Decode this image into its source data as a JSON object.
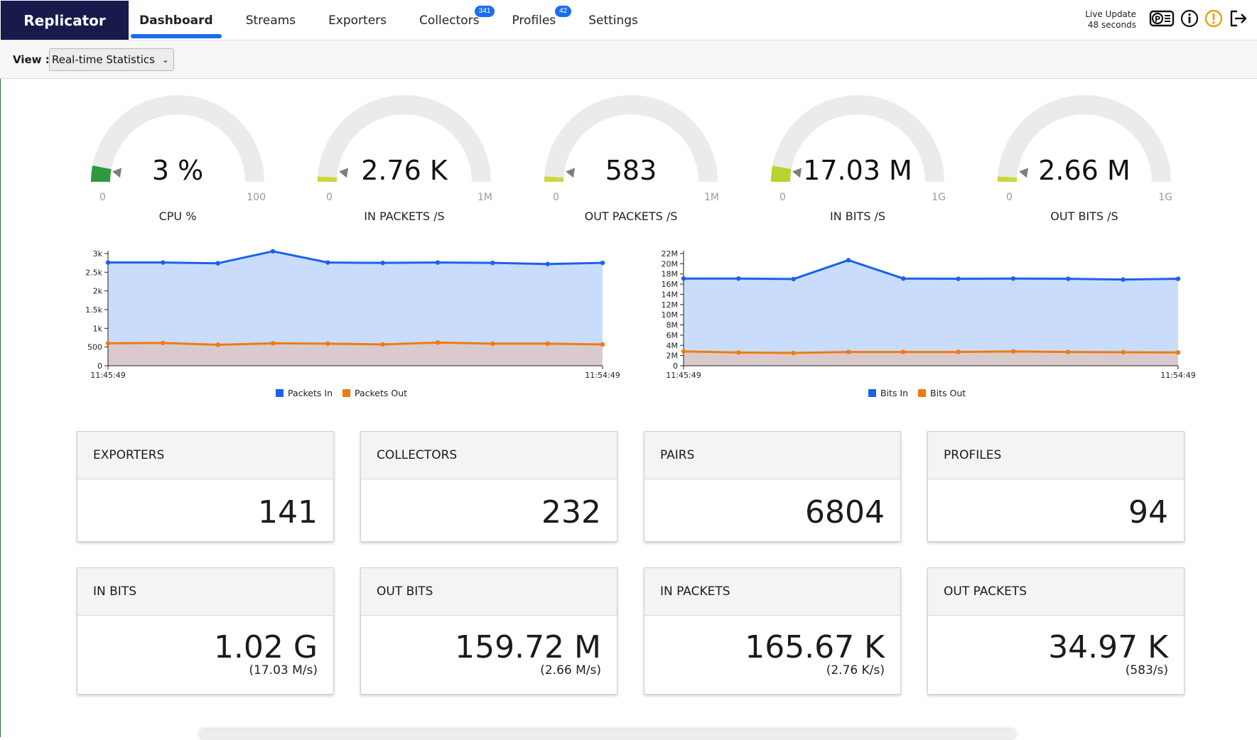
{
  "app": {
    "brand": "Replicator"
  },
  "nav": {
    "items": [
      {
        "label": "Dashboard",
        "active": true
      },
      {
        "label": "Streams"
      },
      {
        "label": "Exporters"
      },
      {
        "label": "Collectors",
        "badge": "341"
      },
      {
        "label": "Profiles",
        "badge": "42"
      },
      {
        "label": "Settings"
      }
    ]
  },
  "live_update": {
    "line1": "Live Update",
    "line2": "48 seconds"
  },
  "toolbar_icons": [
    "license-icon",
    "info-icon",
    "alert-icon",
    "logout-icon"
  ],
  "view": {
    "label": "View :",
    "selected": "Real-time Statistics"
  },
  "gauges": [
    {
      "value": "3 %",
      "min": "0",
      "max": "100",
      "label": "CPU %",
      "fraction": 0.03,
      "color": "#2e9a3b"
    },
    {
      "value": "2.76 K",
      "min": "0",
      "max": "1M",
      "label": "IN PACKETS /S",
      "fraction": 0.003,
      "color": "#c9d93c"
    },
    {
      "value": "583",
      "min": "0",
      "max": "1M",
      "label": "OUT PACKETS /S",
      "fraction": 0.0006,
      "color": "#c9d93c"
    },
    {
      "value": "17.03 M",
      "min": "0",
      "max": "1G",
      "label": "IN BITS /S",
      "fraction": 0.017,
      "color": "#b9d431"
    },
    {
      "value": "2.66 M",
      "min": "0",
      "max": "1G",
      "label": "OUT BITS /S",
      "fraction": 0.003,
      "color": "#c9d93c"
    }
  ],
  "chart_data": [
    {
      "type": "area",
      "x_labels": [
        "11:45:49",
        "11:54:49"
      ],
      "yticks": [
        "0",
        "500",
        "1k",
        "1.5k",
        "2k",
        "2.5k",
        "3k"
      ],
      "ylim": [
        0,
        3000
      ],
      "series": [
        {
          "name": "Packets In",
          "color": "#1a62e8",
          "values": [
            2760,
            2760,
            2740,
            3060,
            2760,
            2750,
            2760,
            2750,
            2720,
            2750
          ]
        },
        {
          "name": "Packets Out",
          "color": "#f07a10",
          "values": [
            600,
            610,
            560,
            600,
            590,
            570,
            620,
            590,
            590,
            570
          ]
        }
      ]
    },
    {
      "type": "area",
      "x_labels": [
        "11:45:49",
        "11:54:49"
      ],
      "yticks": [
        "0",
        "2M",
        "4M",
        "6M",
        "8M",
        "10M",
        "12M",
        "14M",
        "16M",
        "18M",
        "20M",
        "22M"
      ],
      "ylim": [
        0,
        22000000
      ],
      "series": [
        {
          "name": "Bits In",
          "color": "#1a62e8",
          "values": [
            17100000,
            17100000,
            17000000,
            20700000,
            17100000,
            17050000,
            17100000,
            17050000,
            16900000,
            17050000
          ]
        },
        {
          "name": "Bits Out",
          "color": "#f07a10",
          "values": [
            2800000,
            2600000,
            2500000,
            2700000,
            2700000,
            2700000,
            2800000,
            2700000,
            2650000,
            2600000
          ]
        }
      ]
    }
  ],
  "cards_row1": [
    {
      "title": "EXPORTERS",
      "value": "141"
    },
    {
      "title": "COLLECTORS",
      "value": "232"
    },
    {
      "title": "PAIRS",
      "value": "6804"
    },
    {
      "title": "PROFILES",
      "value": "94"
    }
  ],
  "cards_row2": [
    {
      "title": "IN BITS",
      "value": "1.02 G",
      "rate": "(17.03 M/s)"
    },
    {
      "title": "OUT BITS",
      "value": "159.72 M",
      "rate": "(2.66 M/s)"
    },
    {
      "title": "IN PACKETS",
      "value": "165.67 K",
      "rate": "(2.76 K/s)"
    },
    {
      "title": "OUT PACKETS",
      "value": "34.97 K",
      "rate": "(583/s)"
    }
  ]
}
